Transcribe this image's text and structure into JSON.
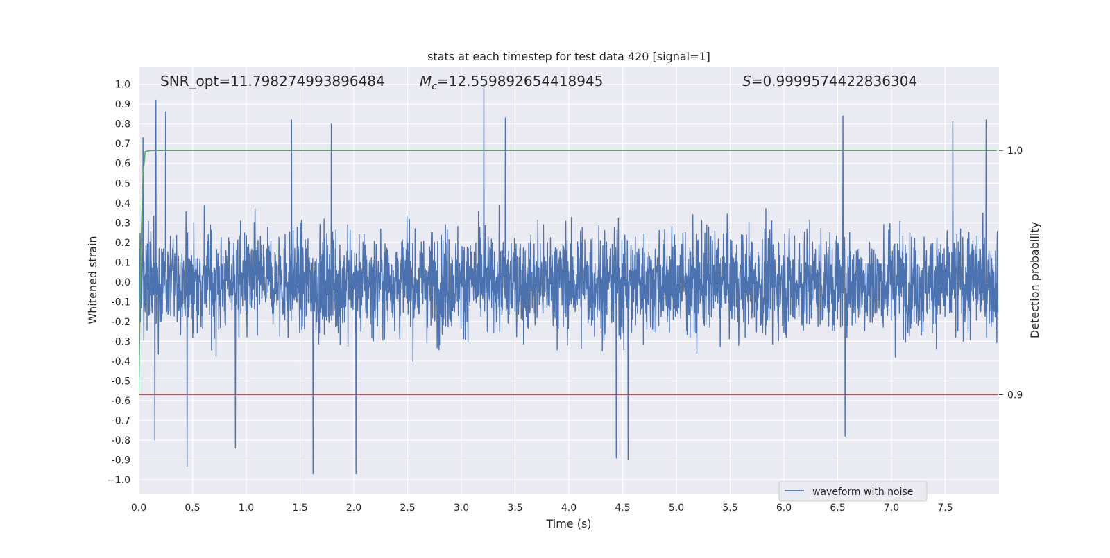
{
  "chart_data": {
    "type": "line",
    "title": "stats at each timestep for test data 420 [signal=1]",
    "xlabel": "Time (s)",
    "ylabel": "Whitened strain",
    "ylabel_right": "Detection probability",
    "xlim": [
      0.0,
      8.0
    ],
    "ylim": [
      -1.07,
      1.09
    ],
    "ylim_right": [
      0.8595,
      1.0344
    ],
    "grid": true,
    "legend_placement": "lower center-right",
    "x_ticks": [
      "0.0",
      "0.5",
      "1.0",
      "1.5",
      "2.0",
      "2.5",
      "3.0",
      "3.5",
      "4.0",
      "4.5",
      "5.0",
      "5.5",
      "6.0",
      "6.5",
      "7.0",
      "7.5"
    ],
    "x_tick_values": [
      0.0,
      0.5,
      1.0,
      1.5,
      2.0,
      2.5,
      3.0,
      3.5,
      4.0,
      4.5,
      5.0,
      5.5,
      6.0,
      6.5,
      7.0,
      7.5
    ],
    "y_ticks": [
      "1.0",
      "0.9",
      "0.8",
      "0.7",
      "0.6",
      "0.5",
      "0.4",
      "0.3",
      "0.2",
      "0.1",
      "0.0",
      "-0.1",
      "-0.2",
      "-0.3",
      "-0.4",
      "-0.5",
      "-0.6",
      "-0.7",
      "-0.8",
      "-0.9",
      "−1.0"
    ],
    "y_tick_values": [
      1.0,
      0.9,
      0.8,
      0.7,
      0.6,
      0.5,
      0.4,
      0.3,
      0.2,
      0.1,
      0.0,
      -0.1,
      -0.2,
      -0.3,
      -0.4,
      -0.5,
      -0.6,
      -0.7,
      -0.8,
      -0.9,
      -1.0
    ],
    "y_ticks_right": [
      "1.0",
      "0.9"
    ],
    "y_tick_values_right": [
      1.0,
      0.9
    ],
    "annotations": {
      "snr": "SNR_opt=11.798274993896484",
      "mc_symbol": "M",
      "mc_sub": "c",
      "mc_value": "=12.559892654418945",
      "s_symbol": "S",
      "s_value": "=0.9999574422836304"
    },
    "series": [
      {
        "name": "waveform with noise",
        "color": "#4c72b0",
        "axis": "left",
        "description_values": {
          "x_range": [
            0.0,
            7.99
          ],
          "typical_envelope": [
            -0.45,
            0.45
          ],
          "peak_points": [
            {
              "x": 0.04,
              "y": 0.73
            },
            {
              "x": 0.16,
              "y": 0.92
            },
            {
              "x": 0.25,
              "y": 0.86
            },
            {
              "x": 1.42,
              "y": 0.82
            },
            {
              "x": 1.79,
              "y": 0.8
            },
            {
              "x": 3.21,
              "y": 1.0
            },
            {
              "x": 3.41,
              "y": 0.83
            },
            {
              "x": 6.55,
              "y": 0.84
            },
            {
              "x": 7.57,
              "y": 0.81
            },
            {
              "x": 7.88,
              "y": 0.82
            },
            {
              "x": 0.04,
              "y": -0.74
            },
            {
              "x": 0.15,
              "y": -0.8
            },
            {
              "x": 0.45,
              "y": -0.93
            },
            {
              "x": 0.9,
              "y": -0.84
            },
            {
              "x": 1.62,
              "y": -0.97
            },
            {
              "x": 2.02,
              "y": -0.97
            },
            {
              "x": 4.44,
              "y": -0.89
            },
            {
              "x": 4.55,
              "y": -0.9
            },
            {
              "x": 6.57,
              "y": -0.78
            }
          ]
        }
      },
      {
        "name": "",
        "color": "#55a868",
        "axis": "right",
        "x": [
          0.0,
          0.02,
          0.04,
          0.06,
          0.1,
          0.2,
          1.0,
          4.0,
          7.98
        ],
        "values": [
          0.9,
          0.96,
          0.99,
          0.9995,
          0.9999,
          1.0,
          1.0,
          1.0,
          1.0
        ]
      },
      {
        "name": "",
        "color": "#c44e52",
        "axis": "right",
        "x": [
          0.0,
          7.99
        ],
        "values": [
          0.9,
          0.9
        ]
      }
    ],
    "legend": [
      {
        "label": "waveform with noise",
        "color": "#4c72b0"
      }
    ]
  }
}
